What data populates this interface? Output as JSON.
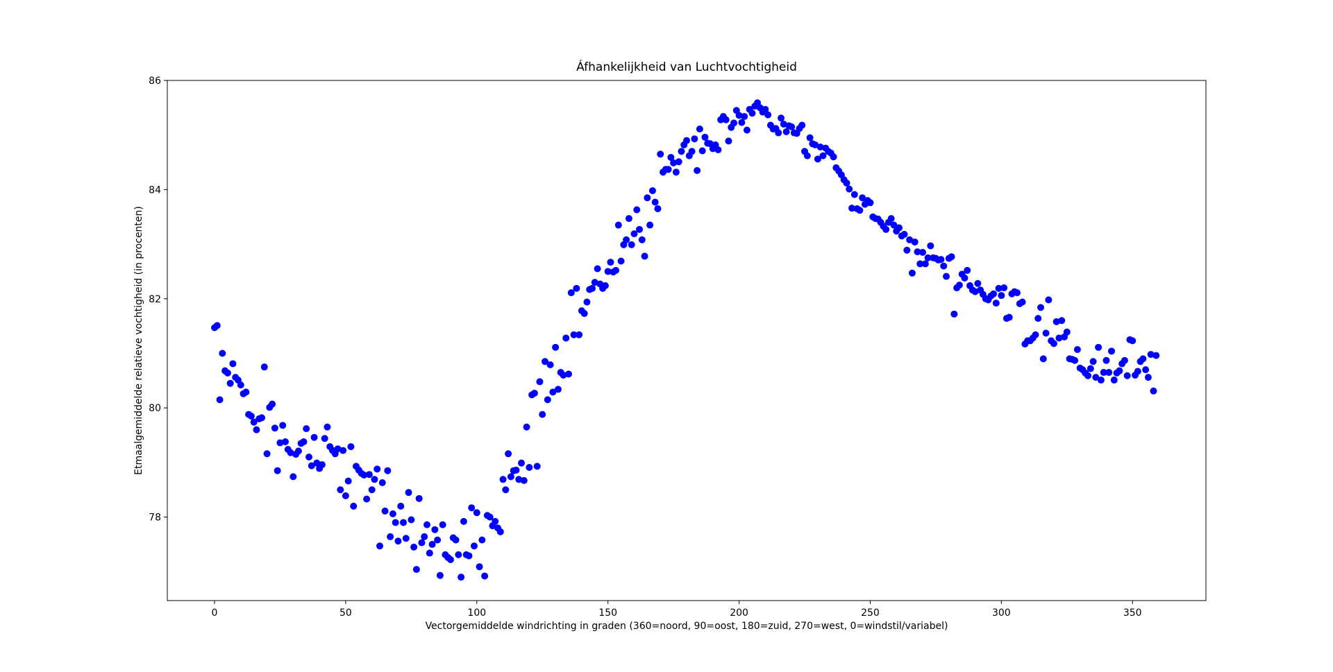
{
  "chart_data": {
    "type": "scatter",
    "title": "Áfhankelijkheid van Luchtvochtigheid",
    "xlabel": "Vectorgemiddelde windrichting in graden (360=noord, 90=oost, 180=zuid, 270=west, 0=windstil/variabel)",
    "ylabel": "Etmaalgemiddelde relatieve vochtigheid (in procenten)",
    "xlim": [
      -18,
      378
    ],
    "ylim": [
      76.47,
      86.0
    ],
    "xticks": [
      0,
      50,
      100,
      150,
      200,
      250,
      300,
      350
    ],
    "yticks": [
      78,
      80,
      82,
      84,
      86
    ],
    "grid": false,
    "color": "#0000ff",
    "x": [
      0,
      1,
      2,
      3,
      4,
      5,
      6,
      7,
      8,
      9,
      10,
      11,
      12,
      13,
      14,
      15,
      16,
      17,
      18,
      19,
      20,
      21,
      22,
      23,
      24,
      25,
      26,
      27,
      28,
      29,
      30,
      31,
      32,
      33,
      34,
      35,
      36,
      37,
      38,
      39,
      40,
      41,
      42,
      43,
      44,
      45,
      46,
      47,
      48,
      49,
      50,
      51,
      52,
      53,
      54,
      55,
      56,
      57,
      58,
      59,
      60,
      61,
      62,
      63,
      64,
      65,
      66,
      67,
      68,
      69,
      70,
      71,
      72,
      73,
      74,
      75,
      76,
      77,
      78,
      79,
      80,
      81,
      82,
      83,
      84,
      85,
      86,
      87,
      88,
      89,
      90,
      91,
      92,
      93,
      94,
      95,
      96,
      97,
      98,
      99,
      100,
      101,
      102,
      103,
      104,
      105,
      106,
      107,
      108,
      109,
      110,
      111,
      112,
      113,
      114,
      115,
      116,
      117,
      118,
      119,
      120,
      121,
      122,
      123,
      124,
      125,
      126,
      127,
      128,
      129,
      130,
      131,
      132,
      133,
      134,
      135,
      136,
      137,
      138,
      139,
      140,
      141,
      142,
      143,
      144,
      145,
      146,
      147,
      148,
      149,
      150,
      151,
      152,
      153,
      154,
      155,
      156,
      157,
      158,
      159,
      160,
      161,
      162,
      163,
      164,
      165,
      166,
      167,
      168,
      169,
      170,
      171,
      172,
      173,
      174,
      175,
      176,
      177,
      178,
      179,
      180,
      181,
      182,
      183,
      184,
      185,
      186,
      187,
      188,
      189,
      190,
      191,
      192,
      193,
      194,
      195,
      196,
      197,
      198,
      199,
      200,
      201,
      202,
      203,
      204,
      205,
      206,
      207,
      208,
      209,
      210,
      211,
      212,
      213,
      214,
      215,
      216,
      217,
      218,
      219,
      220,
      221,
      222,
      223,
      224,
      225,
      226,
      227,
      228,
      229,
      230,
      231,
      232,
      233,
      234,
      235,
      236,
      237,
      238,
      239,
      240,
      241,
      242,
      243,
      244,
      245,
      246,
      247,
      248,
      249,
      250,
      251,
      252,
      253,
      254,
      255,
      256,
      257,
      258,
      259,
      260,
      261,
      262,
      263,
      264,
      265,
      266,
      267,
      268,
      269,
      270,
      271,
      272,
      273,
      274,
      275,
      276,
      277,
      278,
      279,
      280,
      281,
      282,
      283,
      284,
      285,
      286,
      287,
      288,
      289,
      290,
      291,
      292,
      293,
      294,
      295,
      296,
      297,
      298,
      299,
      300,
      301,
      302,
      303,
      304,
      305,
      306,
      307,
      308,
      309,
      310,
      311,
      312,
      313,
      314,
      315,
      316,
      317,
      318,
      319,
      320,
      321,
      322,
      323,
      324,
      325,
      326,
      327,
      328,
      329,
      330,
      331,
      332,
      333,
      334,
      335,
      336,
      337,
      338,
      339,
      340,
      341,
      342,
      343,
      344,
      345,
      346,
      347,
      348,
      349,
      350,
      351,
      352,
      353,
      354,
      355,
      356,
      357,
      358,
      359
    ],
    "values": [
      81.47,
      81.51,
      80.15,
      81.0,
      80.68,
      80.64,
      80.45,
      80.81,
      80.56,
      80.51,
      80.42,
      80.26,
      80.29,
      79.88,
      79.85,
      79.74,
      79.6,
      79.8,
      79.82,
      80.75,
      79.16,
      80.01,
      80.07,
      79.63,
      78.85,
      79.36,
      79.68,
      79.38,
      79.24,
      79.18,
      78.74,
      79.15,
      79.21,
      79.35,
      79.38,
      79.62,
      79.1,
      78.94,
      79.46,
      78.99,
      78.89,
      78.96,
      79.44,
      79.65,
      79.29,
      79.22,
      79.16,
      79.25,
      78.5,
      79.22,
      78.39,
      78.66,
      79.29,
      78.2,
      78.93,
      78.86,
      78.8,
      78.77,
      78.33,
      78.78,
      78.5,
      78.69,
      78.88,
      77.47,
      78.63,
      78.11,
      78.85,
      77.64,
      78.06,
      77.9,
      77.56,
      78.2,
      77.9,
      77.61,
      78.45,
      77.95,
      77.45,
      77.04,
      78.34,
      77.53,
      77.64,
      77.86,
      77.34,
      77.5,
      77.77,
      77.58,
      76.93,
      77.86,
      77.31,
      77.26,
      77.22,
      77.62,
      77.58,
      77.31,
      76.9,
      77.92,
      77.31,
      77.29,
      78.17,
      77.47,
      78.08,
      77.09,
      77.58,
      76.92,
      78.03,
      78.0,
      77.84,
      77.92,
      77.8,
      77.73,
      78.69,
      78.5,
      79.16,
      78.74,
      78.85,
      78.86,
      78.69,
      78.99,
      78.67,
      79.65,
      78.91,
      80.24,
      80.27,
      78.93,
      80.48,
      79.88,
      80.85,
      80.15,
      80.79,
      80.29,
      81.11,
      80.34,
      80.65,
      80.6,
      81.28,
      80.62,
      82.11,
      81.34,
      82.19,
      81.34,
      81.78,
      81.73,
      81.94,
      82.17,
      82.19,
      82.3,
      82.55,
      82.27,
      82.19,
      82.24,
      82.5,
      82.67,
      82.49,
      82.52,
      83.35,
      82.69,
      82.99,
      83.08,
      83.47,
      82.99,
      83.19,
      83.63,
      83.27,
      83.08,
      82.78,
      83.85,
      83.35,
      83.98,
      83.77,
      83.65,
      84.65,
      84.32,
      84.37,
      84.37,
      84.59,
      84.49,
      84.32,
      84.51,
      84.7,
      84.82,
      84.9,
      84.62,
      84.7,
      84.93,
      84.35,
      85.11,
      84.71,
      84.96,
      84.85,
      84.84,
      84.75,
      84.82,
      84.73,
      85.28,
      85.34,
      85.28,
      84.89,
      85.14,
      85.22,
      85.45,
      85.36,
      85.23,
      85.34,
      85.09,
      85.47,
      85.4,
      85.53,
      85.59,
      85.5,
      85.42,
      85.47,
      85.37,
      85.18,
      85.11,
      85.12,
      85.04,
      85.31,
      85.2,
      85.06,
      85.17,
      85.15,
      85.04,
      85.03,
      85.12,
      85.18,
      84.7,
      84.62,
      84.95,
      84.84,
      84.82,
      84.56,
      84.78,
      84.62,
      84.76,
      84.7,
      84.67,
      84.6,
      84.4,
      84.34,
      84.27,
      84.18,
      84.12,
      84.01,
      83.66,
      83.91,
      83.65,
      83.62,
      83.85,
      83.73,
      83.8,
      83.76,
      83.5,
      83.47,
      83.46,
      83.4,
      83.33,
      83.27,
      83.4,
      83.47,
      83.35,
      83.24,
      83.3,
      83.15,
      83.18,
      82.89,
      83.08,
      82.47,
      83.04,
      82.86,
      82.64,
      82.85,
      82.64,
      82.75,
      82.97,
      82.75,
      82.74,
      82.71,
      82.72,
      82.6,
      82.41,
      82.74,
      82.77,
      81.72,
      82.2,
      82.25,
      82.45,
      82.38,
      82.52,
      82.24,
      82.16,
      82.13,
      82.28,
      82.16,
      82.08,
      82.0,
      81.98,
      82.05,
      82.09,
      81.92,
      82.19,
      82.06,
      82.2,
      81.64,
      81.66,
      82.09,
      82.13,
      82.11,
      81.91,
      81.94,
      81.17,
      81.23,
      81.23,
      81.28,
      81.34,
      81.64,
      81.84,
      80.9,
      81.37,
      81.98,
      81.23,
      81.18,
      81.58,
      81.28,
      81.6,
      81.3,
      81.39,
      80.9,
      80.89,
      80.87,
      81.07,
      80.73,
      80.7,
      80.64,
      80.59,
      80.72,
      80.85,
      80.56,
      81.11,
      80.51,
      80.65,
      80.87,
      80.65,
      81.04,
      80.51,
      80.64,
      80.68,
      80.81,
      80.87,
      80.59,
      81.25,
      81.23,
      80.6,
      80.67,
      80.85,
      80.9,
      80.7,
      80.56,
      80.98,
      80.31,
      80.96
    ]
  }
}
